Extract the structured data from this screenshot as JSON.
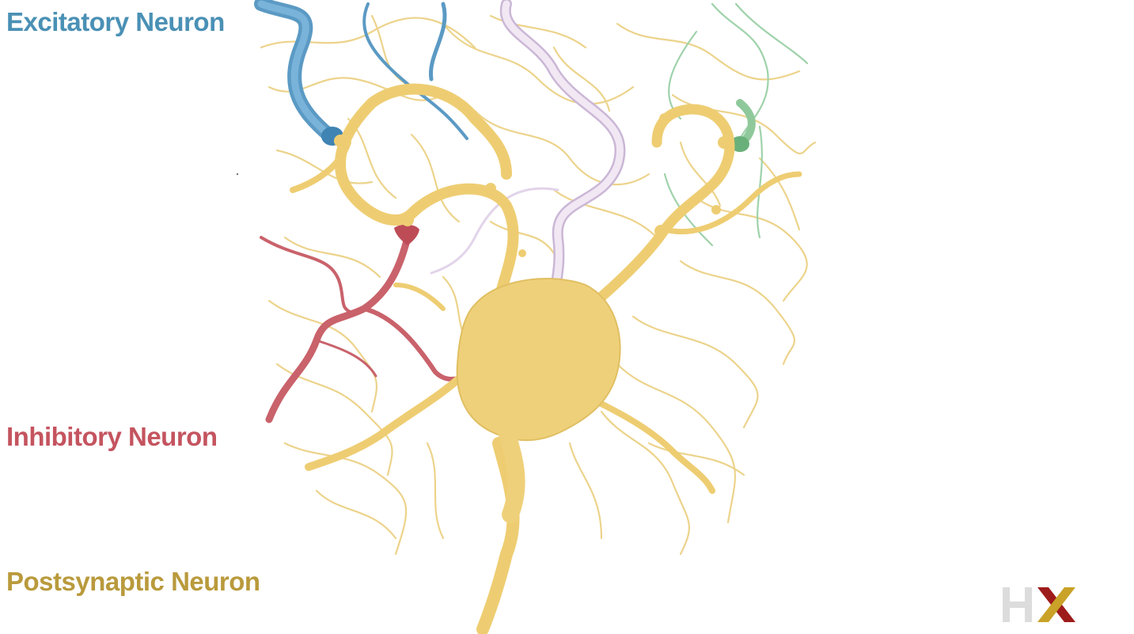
{
  "labels": {
    "excitatory": "Excitatory Neuron",
    "inhibitory": "Inhibitory Neuron",
    "postsynaptic": "Postsynaptic Neuron"
  },
  "colors": {
    "excitatory": "#4a90b5",
    "inhibitory": "#c4545f",
    "postsynaptic": "#b99a3c",
    "neuron_fill": "#f0d378",
    "neuron_line": "#e9c96a",
    "inhibitory_fill": "#c45a63",
    "excitatory_fill": "#6aa6cf",
    "lavender": "#e6d6ec",
    "green": "#9dd2a6",
    "logo_grey": "#dcdcdc",
    "logo_red": "#9e1b1b",
    "logo_gold": "#c9a227"
  },
  "logo": {
    "icon": "hx-logo-icon",
    "letters": "HX"
  }
}
